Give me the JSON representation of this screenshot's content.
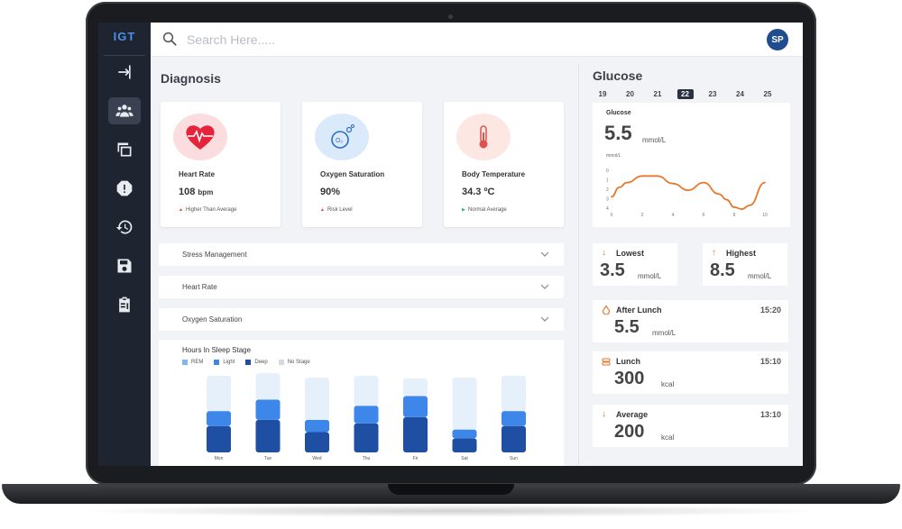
{
  "brand": {
    "logo_text": "IGT",
    "accent": "#4a8fe8"
  },
  "header": {
    "search_placeholder": "Search Here.....",
    "avatar_initials": "SP"
  },
  "sidebar": {
    "items": [
      {
        "name": "login-icon"
      },
      {
        "name": "users-icon",
        "active": true
      },
      {
        "name": "devices-icon"
      },
      {
        "name": "alert-icon"
      },
      {
        "name": "history-icon"
      },
      {
        "name": "save-icon"
      },
      {
        "name": "report-icon"
      }
    ]
  },
  "diagnosis": {
    "title": "Diagnosis",
    "cards": [
      {
        "name": "Heart Rate",
        "value": "108",
        "unit": "bpm",
        "note": "Higher Than Average",
        "note_color": "#e23b3b",
        "icon": "heart-icon",
        "circle_color": "#fbdde0"
      },
      {
        "name": "Oxygen Saturation",
        "value": "90%",
        "unit": "",
        "note": "Risk Level",
        "note_color": "#e23b3b",
        "icon": "oxygen-icon",
        "circle_color": "#dbeafb"
      },
      {
        "name": "Body Temperature",
        "value": "34.3 ºC",
        "unit": "",
        "note": "Normal Average",
        "note_color": "#2bb673",
        "icon": "thermometer-icon",
        "circle_color": "#fde7e2"
      }
    ],
    "accordions": [
      "Stress Management",
      "Heart Rate",
      "Oxygen Saturation"
    ]
  },
  "sleep": {
    "title": "Hours In Sleep Stage",
    "legend": [
      {
        "label": "REM",
        "color": "#7fb6f2"
      },
      {
        "label": "Light",
        "color": "#3d86ea"
      },
      {
        "label": "Deep",
        "color": "#1e4fa3"
      },
      {
        "label": "No Stage",
        "color": "#d6d9de"
      }
    ],
    "chart_data": {
      "type": "bar",
      "categories": [
        "Mon",
        "Tue",
        "Wed",
        "Thu",
        "Fri",
        "Sat",
        "Sun"
      ],
      "series": [
        {
          "name": "Deep",
          "values": [
            3.0,
            3.7,
            2.3,
            3.3,
            4.0,
            1.6,
            3.0
          ]
        },
        {
          "name": "Light",
          "values": [
            1.7,
            2.3,
            1.4,
            2.0,
            2.4,
            1.0,
            1.7
          ]
        },
        {
          "name": "No Stage",
          "values": [
            4.0,
            3.0,
            4.8,
            3.4,
            2.0,
            5.9,
            4.0
          ]
        }
      ],
      "stacked": true,
      "ylim": [
        0,
        8.7
      ]
    }
  },
  "glucose": {
    "title": "Glucose",
    "dates": [
      "19",
      "20",
      "21",
      "22",
      "23",
      "24",
      "25"
    ],
    "active_date": "22",
    "card_label": "Glucose",
    "value": "5.5",
    "unit": "mmol/L",
    "chart_data": {
      "type": "line",
      "ylabel": "mmol/L",
      "x_ticks": [
        "0",
        "2",
        "4",
        "6",
        "8",
        "10"
      ],
      "y_ticks": [
        "0",
        "1",
        "2",
        "3",
        "4"
      ],
      "x": [
        0,
        0.5,
        1,
        2,
        3,
        4,
        5,
        6,
        7,
        7.5,
        8,
        8.5,
        9,
        10
      ],
      "y": [
        2.8,
        1.8,
        1.3,
        0.6,
        0.6,
        1.4,
        2.1,
        1.3,
        2.5,
        3.1,
        3.9,
        4.1,
        3.7,
        1.3
      ],
      "xlim": [
        0,
        10
      ],
      "ylim": [
        0,
        4
      ],
      "color": "#e8772e"
    },
    "lowest": {
      "label": "Lowest",
      "value": "3.5",
      "unit": "mmol/L"
    },
    "highest": {
      "label": "Highest",
      "value": "8.5",
      "unit": "mmol/L"
    },
    "entries": [
      {
        "label": "After Lunch",
        "time": "15:20",
        "value": "5.5",
        "unit": "mmol/L",
        "icon": "drop-icon"
      },
      {
        "label": "Lunch",
        "time": "15:10",
        "value": "300",
        "unit": "kcal",
        "icon": "food-icon"
      },
      {
        "label": "Average",
        "time": "13:10",
        "value": "200",
        "unit": "kcal",
        "icon": "arrow-down-icon"
      }
    ]
  }
}
